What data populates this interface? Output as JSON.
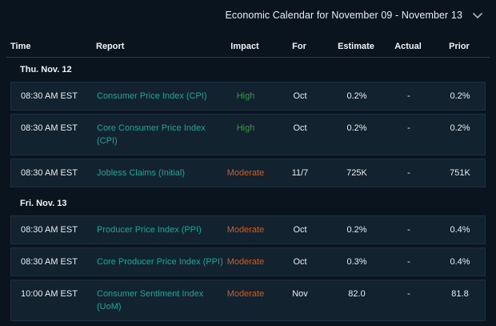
{
  "header": {
    "title": "Economic Calendar for November 09 - November 13"
  },
  "table": {
    "columns": [
      "Time",
      "Report",
      "Impact",
      "For",
      "Estimate",
      "Actual",
      "Prior"
    ],
    "sections": [
      {
        "date": "Thu. Nov. 12",
        "rows": [
          {
            "time": "08:30 AM EST",
            "report": "Consumer Price Index (CPI)",
            "report_lines": [
              "Consumer Price Index (CPI)"
            ],
            "impact": "High",
            "impact_level": "high",
            "for": "Oct",
            "estimate": "0.2%",
            "actual": "-",
            "prior": "0.2%"
          },
          {
            "time": "08:30 AM EST",
            "report": "Core Consumer Price Index (CPI)",
            "report_lines": [
              "Core Consumer Price Index",
              "(CPI)"
            ],
            "impact": "High",
            "impact_level": "high",
            "for": "Oct",
            "estimate": "0.2%",
            "actual": "-",
            "prior": "0.2%"
          },
          {
            "time": "08:30 AM EST",
            "report": "Jobless Claims (Initial)",
            "report_lines": [
              "Jobless Claims (Initial)"
            ],
            "impact": "Moderate",
            "impact_level": "moderate",
            "for": "11/7",
            "estimate": "725K",
            "actual": "-",
            "prior": "751K"
          }
        ]
      },
      {
        "date": "Fri. Nov. 13",
        "rows": [
          {
            "time": "08:30 AM EST",
            "report": "Producer Price Index (PPI)",
            "report_lines": [
              "Producer Price Index (PPI)"
            ],
            "impact": "Moderate",
            "impact_level": "moderate",
            "for": "Oct",
            "estimate": "0.2%",
            "actual": "-",
            "prior": "0.4%"
          },
          {
            "time": "08:30 AM EST",
            "report": "Core Producer Price Index (PPI)",
            "report_lines": [
              "Core Producer Price Index (PPI)"
            ],
            "impact": "Moderate",
            "impact_level": "moderate",
            "for": "Oct",
            "estimate": "0.3%",
            "actual": "-",
            "prior": "0.4%"
          },
          {
            "time": "10:00 AM EST",
            "report": "Consumer Sentiment Index (UoM)",
            "report_lines": [
              "Consumer Sentiment Index",
              "(UoM)"
            ],
            "impact": "Moderate",
            "impact_level": "moderate",
            "for": "Nov",
            "estimate": "82.0",
            "actual": "-",
            "prior": "81.8"
          }
        ]
      }
    ]
  },
  "icons": {
    "dropdown": "chevron-down-icon"
  },
  "colors": {
    "background": "#0a141f",
    "row_background": "#13222f",
    "row_border": "#1e3040",
    "divider": "#2c3945",
    "text_primary": "#e8edf1",
    "text_header": "#f0f3f5",
    "report_link": "#15a79b",
    "impact_high": "#2e9e3e",
    "impact_moderate": "#c85f26",
    "chevron": "#a9b4bd"
  }
}
